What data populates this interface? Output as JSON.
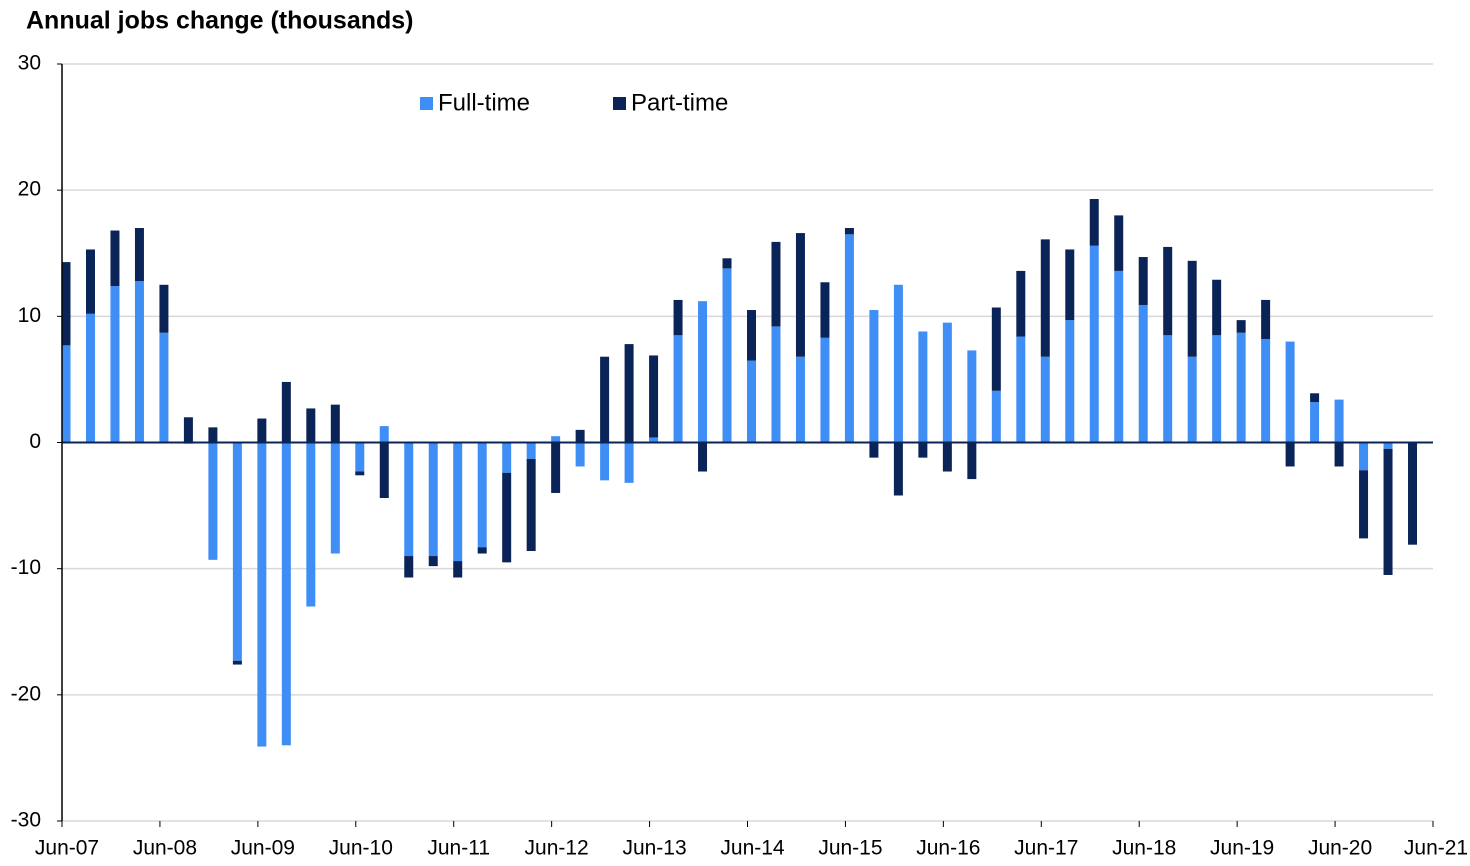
{
  "chart_data": {
    "type": "stacked_bar",
    "title": "Annual jobs change (thousands)",
    "categories": [
      "Jun-07",
      null,
      null,
      null,
      "Jun-08",
      null,
      null,
      null,
      "Jun-09",
      null,
      null,
      null,
      "Jun-10",
      null,
      null,
      null,
      "Jun-11",
      null,
      null,
      null,
      "Jun-12",
      null,
      null,
      null,
      "Jun-13",
      null,
      null,
      null,
      "Jun-14",
      null,
      null,
      null,
      "Jun-15",
      null,
      null,
      null,
      "Jun-16",
      null,
      null,
      null,
      "Jun-17",
      null,
      null,
      null,
      "Jun-18",
      null,
      null,
      null,
      "Jun-19",
      null,
      null,
      null,
      "Jun-20",
      null,
      null,
      null,
      "Jun-21"
    ],
    "series": [
      {
        "name": "Full-time",
        "color": "#3f8ef5",
        "values": [
          7.7,
          10.2,
          12.4,
          12.8,
          8.7,
          -0.1,
          -9.3,
          -17.3,
          -24.1,
          -24.0,
          -13.0,
          -8.8,
          -2.3,
          1.3,
          -9.0,
          -9.0,
          -9.4,
          -8.3,
          -2.4,
          -1.3,
          0.5,
          -1.9,
          -3.0,
          -3.2,
          0.4,
          8.5,
          11.2,
          13.8,
          6.5,
          9.2,
          6.8,
          8.3,
          16.5,
          10.5,
          12.5,
          8.8,
          9.5,
          7.3,
          4.1,
          8.4,
          6.8,
          9.7,
          15.6,
          13.6,
          10.9,
          8.5,
          6.8,
          8.5,
          8.7,
          8.2,
          8.0,
          3.2,
          3.4,
          -2.2,
          -0.5,
          0,
          null
        ]
      },
      {
        "name": "Part-time",
        "color": "#0b2458",
        "values": [
          6.6,
          5.1,
          4.4,
          4.2,
          3.8,
          2.0,
          1.2,
          -0.3,
          1.9,
          4.8,
          2.7,
          3.0,
          -0.3,
          -4.4,
          -1.7,
          -0.8,
          -1.3,
          -0.5,
          -7.1,
          -7.3,
          -4.0,
          1.0,
          6.8,
          7.8,
          6.5,
          2.8,
          -2.3,
          0.8,
          4.0,
          6.7,
          9.8,
          4.4,
          0.5,
          -1.2,
          -4.2,
          -1.2,
          -2.3,
          -2.9,
          6.6,
          5.2,
          9.3,
          5.6,
          3.7,
          4.4,
          3.8,
          7.0,
          7.6,
          4.4,
          1.0,
          3.1,
          -1.9,
          0.7,
          -1.9,
          -5.4,
          -10.0,
          -8.1,
          null
        ]
      }
    ],
    "ylim": [
      -30,
      30
    ],
    "yticks": [
      -30,
      -20,
      -10,
      0,
      10,
      20,
      30
    ],
    "grid": true,
    "legend": "top"
  }
}
